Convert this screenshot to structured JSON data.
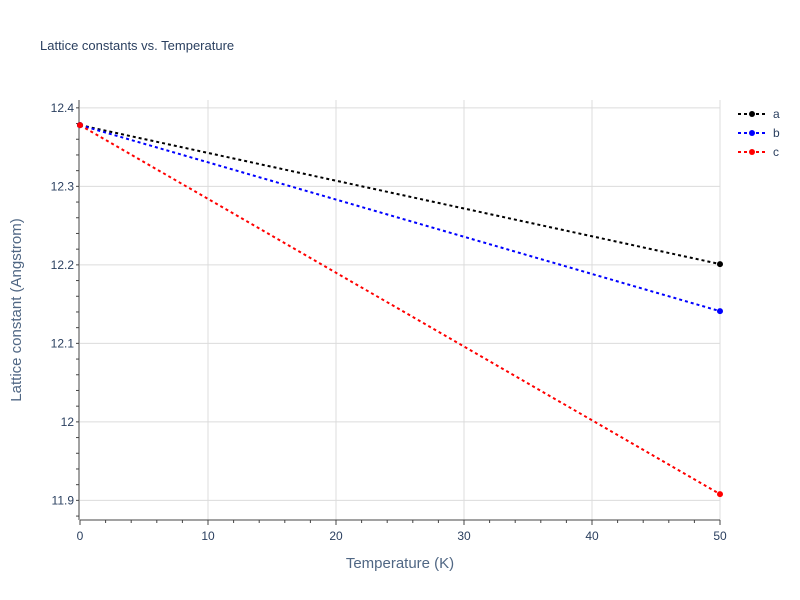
{
  "chart_data": {
    "type": "line",
    "title": "Lattice constants vs. Temperature",
    "xlabel": "Temperature (K)",
    "ylabel": "Lattice constant (Angstrom)",
    "xlim": [
      0,
      50
    ],
    "ylim": [
      11.875,
      12.41
    ],
    "xticks": [
      0,
      10,
      20,
      30,
      40,
      50
    ],
    "xtick_labels": [
      "0",
      "10",
      "20",
      "30",
      "40",
      "50"
    ],
    "yticks": [
      11.9,
      12,
      12.1,
      12.2,
      12.3,
      12.4
    ],
    "ytick_labels": [
      "11.9",
      "12",
      "12.1",
      "12.2",
      "12.3",
      "12.4"
    ],
    "grid": true,
    "legend": "top-right",
    "x": [
      0,
      50
    ],
    "series": [
      {
        "name": "a",
        "color": "#000000",
        "values": [
          12.378,
          12.201
        ]
      },
      {
        "name": "b",
        "color": "#0000ff",
        "values": [
          12.378,
          12.141
        ]
      },
      {
        "name": "c",
        "color": "#ff0000",
        "values": [
          12.378,
          11.908
        ]
      }
    ]
  }
}
